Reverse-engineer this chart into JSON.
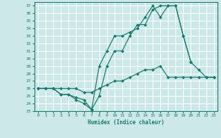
{
  "xlabel": "Humidex (Indice chaleur)",
  "bg_color": "#cce8e8",
  "line_color": "#1a7a6e",
  "grid_color": "#ffffff",
  "xlim": [
    -0.5,
    23.5
  ],
  "ylim": [
    23,
    37.5
  ],
  "xticks": [
    0,
    1,
    2,
    3,
    4,
    5,
    6,
    7,
    8,
    9,
    10,
    11,
    12,
    13,
    14,
    15,
    16,
    17,
    18,
    19,
    20,
    21,
    22,
    23
  ],
  "yticks": [
    23,
    24,
    25,
    26,
    27,
    28,
    29,
    30,
    31,
    32,
    33,
    34,
    35,
    36,
    37
  ],
  "line1_x": [
    0,
    1,
    2,
    3,
    4,
    5,
    6,
    7,
    8,
    9,
    10,
    11,
    12,
    13,
    14,
    15,
    16,
    17,
    18,
    19,
    20,
    21,
    22,
    23
  ],
  "line1_y": [
    26,
    26,
    26,
    26,
    26,
    26,
    25.5,
    25.5,
    26,
    26.5,
    27,
    27,
    27.5,
    28,
    28.5,
    28.5,
    29,
    27.5,
    27.5,
    27.5,
    27.5,
    27.5,
    27.5,
    27.5
  ],
  "line2_x": [
    0,
    1,
    2,
    3,
    4,
    5,
    6,
    7,
    8,
    9,
    10,
    11,
    12,
    13,
    14,
    15,
    16,
    17,
    18,
    19,
    20,
    21,
    22,
    23
  ],
  "line2_y": [
    26,
    26,
    26,
    25.2,
    25.2,
    24.8,
    24.5,
    23.2,
    25,
    29,
    31,
    31,
    33,
    34.5,
    34.5,
    36.5,
    37,
    37,
    37,
    33,
    29.5,
    28.5,
    27.5,
    27.5
  ],
  "line3_x": [
    0,
    1,
    2,
    3,
    4,
    5,
    6,
    7,
    8,
    9,
    10,
    11,
    12,
    13,
    14,
    15,
    16,
    17,
    18,
    19,
    20
  ],
  "line3_y": [
    26,
    26,
    26,
    25.2,
    25.2,
    24.5,
    24,
    23.2,
    29,
    31,
    33,
    33,
    33.5,
    34,
    35.5,
    37,
    35.5,
    37,
    37,
    33,
    29.5
  ]
}
